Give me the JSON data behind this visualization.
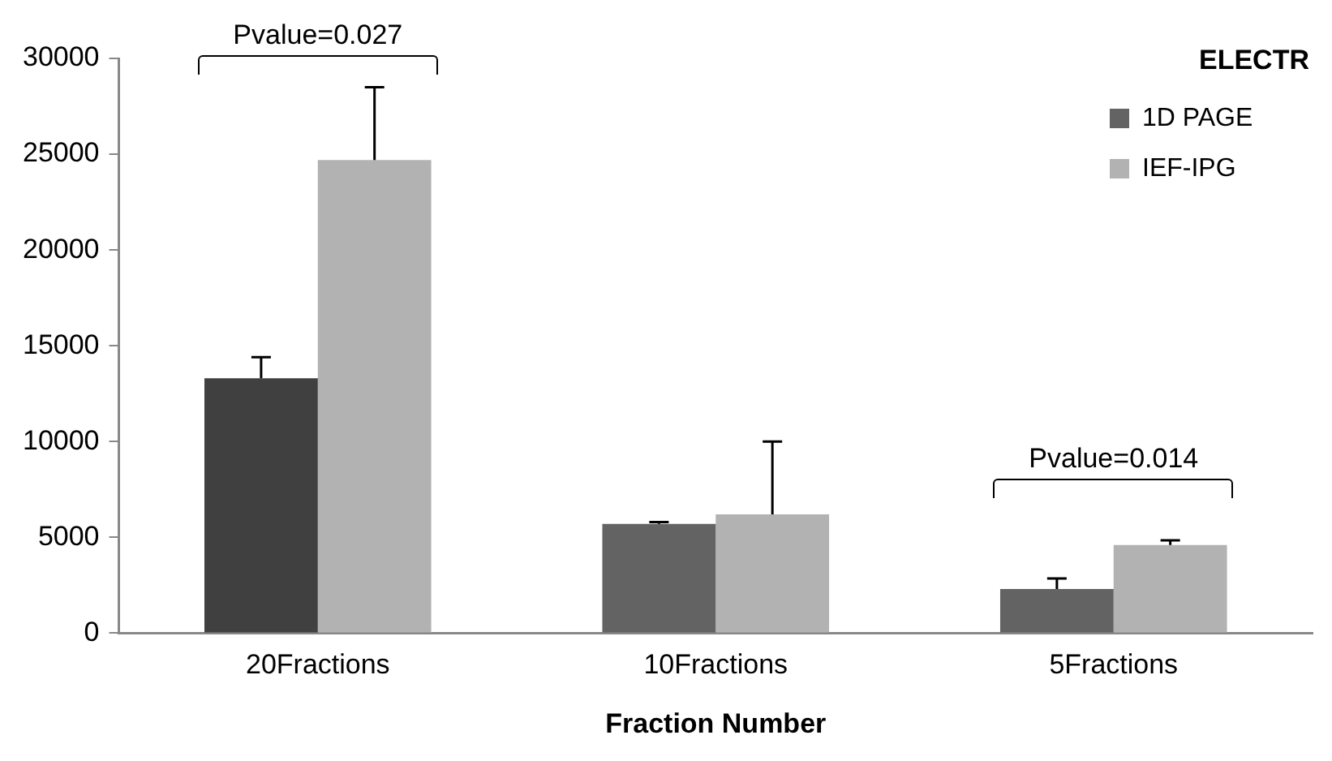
{
  "chart_data": {
    "type": "bar",
    "xlabel": "Fraction Number",
    "legend_title": "ELECTR",
    "legend": "top right",
    "grid": false,
    "categories": [
      "20Fractions",
      "10Fractions",
      "5Fractions"
    ],
    "series": [
      {
        "name": "1D PAGE",
        "color": "#636363",
        "colors": [
          "#404040",
          "#636363",
          "#636363"
        ],
        "values": [
          13300,
          5700,
          2300
        ],
        "errors": [
          1100,
          100,
          550
        ]
      },
      {
        "name": "IEF-IPG",
        "color": "#b2b2b2",
        "values": [
          24700,
          6200,
          4600
        ],
        "errors": [
          3800,
          3800,
          250
        ]
      }
    ],
    "ylim": [
      0,
      30000
    ],
    "yticks": [
      0,
      5000,
      10000,
      15000,
      20000,
      25000,
      30000
    ],
    "annotations": [
      "Pvalue=0.027",
      "Pvalue=0.014"
    ]
  }
}
